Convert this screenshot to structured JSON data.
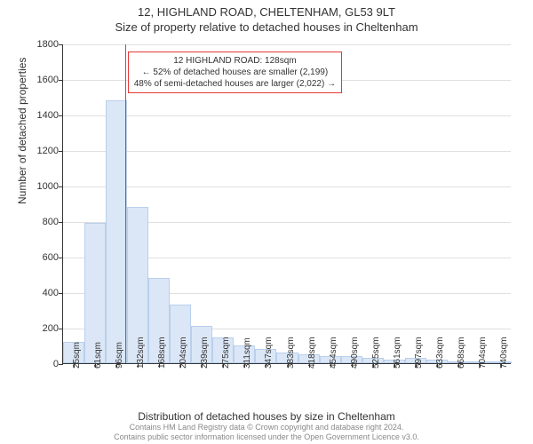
{
  "header": {
    "address": "12, HIGHLAND ROAD, CHELTENHAM, GL53 9LT",
    "subtitle": "Size of property relative to detached houses in Cheltenham"
  },
  "chart": {
    "type": "histogram",
    "ylabel": "Number of detached properties",
    "xlabel": "Distribution of detached houses by size in Cheltenham",
    "ylim": [
      0,
      1800
    ],
    "ytick_step": 200,
    "yticks": [
      0,
      200,
      400,
      600,
      800,
      1000,
      1200,
      1400,
      1600,
      1800
    ],
    "xticks": [
      "25sqm",
      "61sqm",
      "96sqm",
      "132sqm",
      "168sqm",
      "204sqm",
      "239sqm",
      "275sqm",
      "311sqm",
      "347sqm",
      "383sqm",
      "418sqm",
      "454sqm",
      "490sqm",
      "525sqm",
      "561sqm",
      "597sqm",
      "633sqm",
      "668sqm",
      "704sqm",
      "740sqm"
    ],
    "bars": [
      120,
      790,
      1480,
      880,
      480,
      330,
      210,
      145,
      100,
      78,
      58,
      50,
      42,
      38,
      28,
      22,
      30,
      18,
      10,
      12,
      8
    ],
    "bar_fill": "#dbe7f6",
    "bar_stroke": "#b9cfec",
    "grid_color": "#e0e0e0",
    "axis_color": "#333333",
    "background_color": "#ffffff",
    "marker": {
      "color": "#e53935",
      "bin_index": 2,
      "position_in_bin": 0.9
    },
    "annotation": {
      "lines": [
        "12 HIGHLAND ROAD: 128sqm",
        "← 52% of detached houses are smaller (2,199)",
        "48% of semi-detached houses are larger (2,022) →"
      ],
      "border_color": "#e53935",
      "background_color": "#ffffff",
      "text_color": "#333333"
    }
  },
  "footer": {
    "line1": "Contains HM Land Registry data © Crown copyright and database right 2024.",
    "line2": "Contains public sector information licensed under the Open Government Licence v3.0."
  }
}
